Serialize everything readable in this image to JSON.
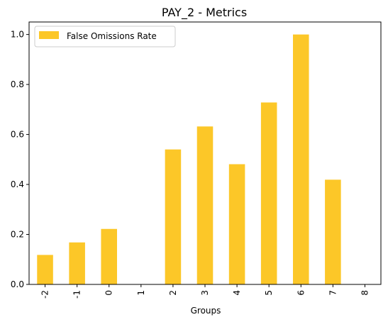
{
  "chart_data": {
    "type": "bar",
    "title": "PAY_2 - Metrics",
    "xlabel": "Groups",
    "ylabel": "",
    "categories": [
      "-2",
      "-1",
      "0",
      "1",
      "2",
      "3",
      "4",
      "5",
      "6",
      "7",
      "8"
    ],
    "series": [
      {
        "name": "False Omissions Rate",
        "values": [
          0.118,
          0.168,
          0.222,
          0.0,
          0.54,
          0.632,
          0.481,
          0.728,
          1.0,
          0.419,
          0.0
        ],
        "color": "#fcc728"
      }
    ],
    "ylim": [
      0,
      1.05
    ],
    "yticks": [
      "0.0",
      "0.2",
      "0.4",
      "0.6",
      "0.8",
      "1.0"
    ],
    "grid": false,
    "legend_position": "top-left"
  }
}
